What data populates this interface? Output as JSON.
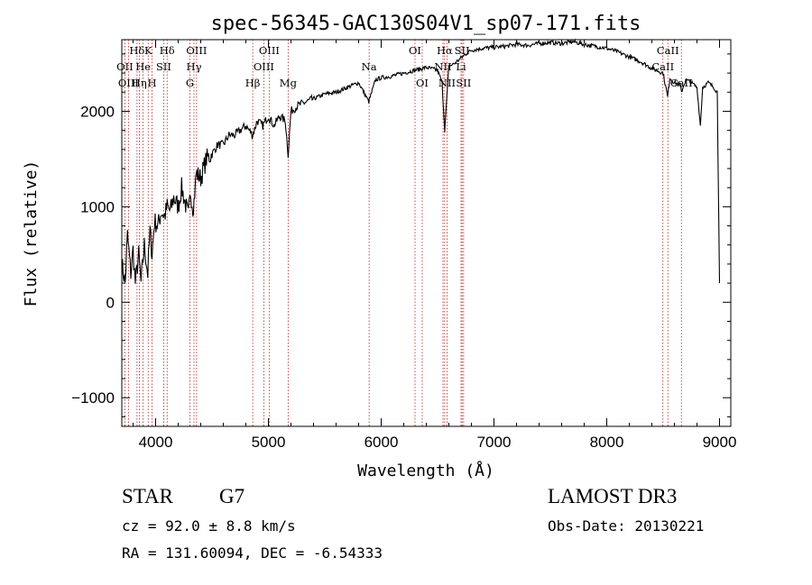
{
  "chart_data": {
    "type": "line",
    "title": "spec-56345-GAC130S04V1_sp07-171.fits",
    "xlabel": "Wavelength (Å)",
    "ylabel": "Flux (relative)",
    "xlim": [
      3700,
      9100
    ],
    "ylim": [
      -1300,
      2750
    ],
    "x_ticks": [
      4000,
      5000,
      6000,
      7000,
      8000,
      9000
    ],
    "x_tick_labels": [
      "4000",
      "5000",
      "6000",
      "7000",
      "8000",
      "9000"
    ],
    "y_ticks": [
      -1000,
      0,
      1000,
      2000
    ],
    "y_tick_labels": [
      "−1000",
      "0",
      "1000",
      "2000"
    ],
    "grid": false,
    "series": [
      {
        "color": "#000000",
        "x": [
          3700,
          3730,
          3750,
          3780,
          3800,
          3820,
          3850,
          3870,
          3900,
          3930,
          3950,
          3968,
          3990,
          4020,
          4050,
          4080,
          4102,
          4130,
          4160,
          4200,
          4230,
          4260,
          4290,
          4310,
          4330,
          4340,
          4360,
          4400,
          4450,
          4500,
          4550,
          4600,
          4650,
          4700,
          4750,
          4800,
          4861,
          4900,
          4950,
          5000,
          5050,
          5100,
          5150,
          5175,
          5200,
          5250,
          5300,
          5400,
          5500,
          5600,
          5700,
          5800,
          5890,
          5950,
          6000,
          6100,
          6200,
          6300,
          6400,
          6500,
          6540,
          6563,
          6580,
          6600,
          6650,
          6700,
          6750,
          6800,
          6900,
          7000,
          7100,
          7200,
          7300,
          7400,
          7500,
          7600,
          7700,
          7800,
          7900,
          8000,
          8100,
          8200,
          8300,
          8400,
          8500,
          8540,
          8560,
          8600,
          8650,
          8662,
          8700,
          8750,
          8800,
          8830,
          8850,
          8900,
          8950,
          8980,
          9000
        ],
        "values": [
          400,
          200,
          700,
          300,
          550,
          200,
          500,
          200,
          600,
          300,
          750,
          500,
          850,
          800,
          950,
          900,
          1000,
          950,
          1100,
          1000,
          1200,
          1050,
          900,
          1150,
          1000,
          1050,
          1350,
          1300,
          1500,
          1550,
          1650,
          1650,
          1750,
          1750,
          1800,
          1850,
          1750,
          1900,
          1850,
          1950,
          1850,
          1950,
          1900,
          1550,
          2000,
          2050,
          2080,
          2130,
          2180,
          2200,
          2250,
          2300,
          2100,
          2330,
          2350,
          2370,
          2400,
          2430,
          2460,
          2430,
          2300,
          1800,
          2100,
          2470,
          2500,
          2550,
          2600,
          2640,
          2660,
          2670,
          2680,
          2700,
          2690,
          2710,
          2720,
          2710,
          2730,
          2700,
          2680,
          2660,
          2620,
          2570,
          2520,
          2450,
          2400,
          2150,
          2350,
          2300,
          2280,
          2200,
          2330,
          2300,
          2250,
          1850,
          2250,
          2300,
          2250,
          2200,
          200
        ]
      }
    ],
    "line_markers": [
      {
        "label": "Hδ",
        "x": 3835,
        "row": 0
      },
      {
        "label": "OII",
        "x": 3727,
        "row": 1
      },
      {
        "label": "OIII",
        "x": 3759,
        "row": 2
      },
      {
        "label": "He",
        "x": 3889,
        "row": 1
      },
      {
        "label": "Hη",
        "x": 3855,
        "row": 2
      },
      {
        "label": "K",
        "x": 3934,
        "row": 0
      },
      {
        "label": "H",
        "x": 3968,
        "row": 2
      },
      {
        "label": "SII",
        "x": 4072,
        "row": 1
      },
      {
        "label": "Hδ",
        "x": 4102,
        "row": 0
      },
      {
        "label": "OIII",
        "x": 4363,
        "row": 0
      },
      {
        "label": "Hγ",
        "x": 4340,
        "row": 1
      },
      {
        "label": "G",
        "x": 4304,
        "row": 2
      },
      {
        "label": "OIII",
        "x": 5007,
        "row": 0
      },
      {
        "label": "OIII",
        "x": 4959,
        "row": 1
      },
      {
        "label": "Hβ",
        "x": 4861,
        "row": 2
      },
      {
        "label": "Mg",
        "x": 5175,
        "row": 2
      },
      {
        "label": "Na",
        "x": 5893,
        "row": 1
      },
      {
        "label": "OI",
        "x": 6300,
        "row": 0
      },
      {
        "label": "OI",
        "x": 6364,
        "row": 2
      },
      {
        "label": "Hα",
        "x": 6563,
        "row": 0
      },
      {
        "label": "NII",
        "x": 6548,
        "row": 1
      },
      {
        "label": "NII",
        "x": 6584,
        "row": 2
      },
      {
        "label": "SII",
        "x": 6717,
        "row": 0
      },
      {
        "label": "Li",
        "x": 6708,
        "row": 1
      },
      {
        "label": "SII",
        "x": 6731,
        "row": 2
      },
      {
        "label": "CaII",
        "x": 8542,
        "row": 0
      },
      {
        "label": "CaII",
        "x": 8498,
        "row": 1
      },
      {
        "label": "CaII",
        "x": 8662,
        "row": 2
      }
    ]
  },
  "info": {
    "class_label": "STAR",
    "subclass": "G7",
    "survey": "LAMOST DR3",
    "redshift": "cz = 92.0 ± 8.8 km/s",
    "obs_date": "Obs-Date: 20130221",
    "coords": "RA = 131.60094, DEC =  -6.54333"
  },
  "colors": {
    "spectrum": "#000000",
    "line_markers": "#b22222",
    "background": "#ffffff"
  }
}
